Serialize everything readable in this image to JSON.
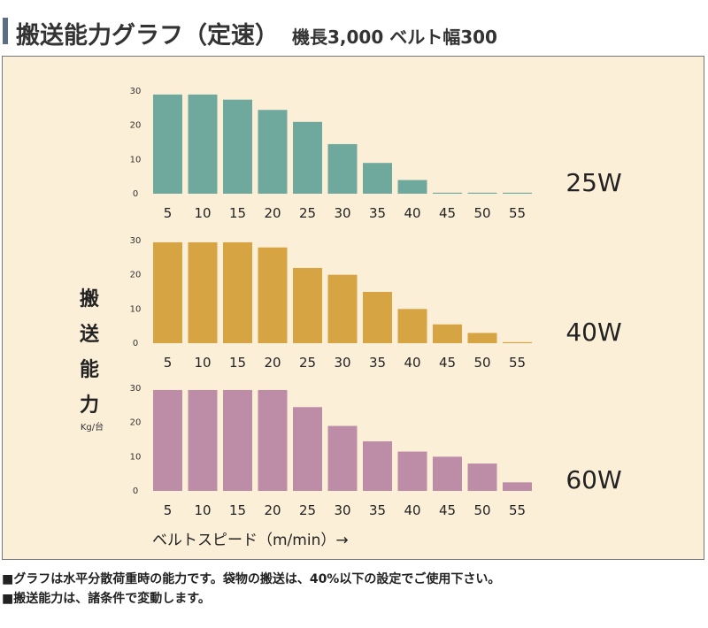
{
  "title": {
    "main": "搬送能力グラフ（定速）",
    "sub": "機長3,000 ベルト幅300"
  },
  "axis": {
    "ylabel_chars": [
      "搬",
      "送",
      "能",
      "力"
    ],
    "yunit": "Kg/台",
    "xlabel": "ベルトスピード（m/min）→"
  },
  "notes": [
    "■グラフは水平分散荷重時の能力です。袋物の搬送は、40%以下の設定でご使用下さい。",
    "■搬送能力は、諸条件で変動します。"
  ],
  "chart_data": [
    {
      "type": "bar",
      "label": "25W",
      "color": "#6fa89d",
      "categories": [
        "5",
        "10",
        "15",
        "20",
        "25",
        "30",
        "35",
        "40",
        "45",
        "50",
        "55"
      ],
      "values": [
        29,
        29,
        27.5,
        24.5,
        21,
        14.5,
        9,
        4,
        0.3,
        0.3,
        0.3
      ],
      "yticks": [
        "30",
        "20",
        "10",
        "0"
      ],
      "ylim": [
        0,
        30
      ]
    },
    {
      "type": "bar",
      "label": "40W",
      "color": "#d6a443",
      "categories": [
        "5",
        "10",
        "15",
        "20",
        "25",
        "30",
        "35",
        "40",
        "45",
        "50",
        "55"
      ],
      "values": [
        29.5,
        29.5,
        29.5,
        28,
        22,
        20,
        15,
        10,
        5.5,
        3,
        0.3
      ],
      "yticks": [
        "30",
        "20",
        "10",
        "0"
      ],
      "ylim": [
        0,
        30
      ]
    },
    {
      "type": "bar",
      "label": "60W",
      "color": "#bd8da7",
      "categories": [
        "5",
        "10",
        "15",
        "20",
        "25",
        "30",
        "35",
        "40",
        "45",
        "50",
        "55"
      ],
      "values": [
        29.5,
        29.5,
        29.5,
        29.5,
        24.5,
        19,
        14.5,
        11.5,
        10,
        8,
        2.5
      ],
      "yticks": [
        "30",
        "20",
        "10",
        "0"
      ],
      "ylim": [
        0,
        30
      ]
    }
  ]
}
